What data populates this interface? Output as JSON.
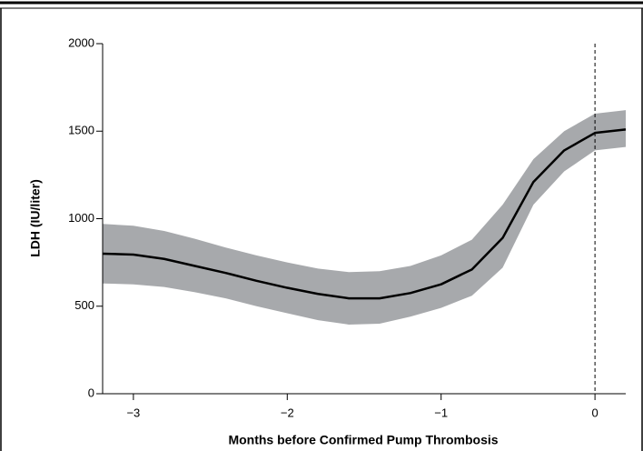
{
  "chart_data": {
    "type": "line",
    "ylabel": "LDH (IU/liter)",
    "xlabel": "Months before Confirmed Pump Thrombosis",
    "x": [
      -3.2,
      -3,
      -2.8,
      -2.6,
      -2.4,
      -2.2,
      -2,
      -1.8,
      -1.6,
      -1.4,
      -1.2,
      -1,
      -0.8,
      -0.6,
      -0.4,
      -0.2,
      0,
      0.2
    ],
    "values": [
      800,
      795,
      770,
      730,
      690,
      645,
      605,
      570,
      545,
      545,
      575,
      625,
      710,
      890,
      1210,
      1390,
      1490,
      1510
    ],
    "color": "#000000",
    "band": {
      "upper": [
        970,
        960,
        930,
        885,
        835,
        790,
        750,
        715,
        695,
        700,
        730,
        790,
        880,
        1080,
        1340,
        1500,
        1600,
        1620
      ],
      "lower": [
        630,
        625,
        610,
        580,
        545,
        500,
        460,
        420,
        395,
        400,
        440,
        490,
        560,
        720,
        1080,
        1270,
        1390,
        1410
      ],
      "color": "#a7a9ac"
    },
    "vline": 0,
    "xlim": [
      -3.2,
      0.2
    ],
    "ylim": [
      0,
      2000
    ],
    "xticks": [
      {
        "value": -3,
        "label": "−3"
      },
      {
        "value": -2,
        "label": "−2"
      },
      {
        "value": -1,
        "label": "−1"
      },
      0
    ],
    "yticks": [
      0,
      500,
      1000,
      1500,
      2000
    ]
  }
}
